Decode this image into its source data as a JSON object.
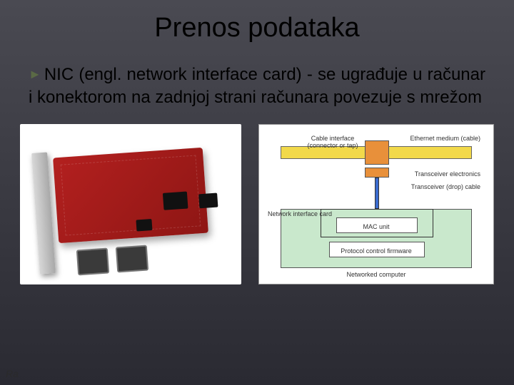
{
  "slide": {
    "title": "Prenos podataka",
    "bullet_prefix": "NIC",
    "body_rest": "  (engl. network interface card) - se ugrađuje u računar i  konektorom na zadnjoj strani računara povezuje s mrežom",
    "footer": "Ra"
  },
  "diagram": {
    "type": "infographic",
    "background_color": "#ffffff",
    "font_size_pt": 7,
    "text_color": "#333333",
    "medium_bar": {
      "color": "#f2d94a",
      "border": "#666666"
    },
    "tap_box": {
      "color": "#e8903a",
      "border": "#555555"
    },
    "trans_box": {
      "color": "#e8903a",
      "border": "#555555"
    },
    "drop_cable": {
      "color": "#3a6bce",
      "border": "#333333"
    },
    "computer_box": {
      "color": "#c9e8cc",
      "border": "#555555"
    },
    "inner_box": {
      "color": "#ffffff",
      "border": "#555555"
    },
    "labels": {
      "cable_interface": "Cable interface\n(connector or tap)",
      "ethernet_medium": "Ethernet medium (cable)",
      "transceiver": "Transceiver electronics",
      "drop_cable": "Transceiver (drop) cable",
      "nic": "Network interface card",
      "mac": "MAC unit",
      "protocol": "Protocol control firmware",
      "networked_computer": "Networked computer"
    }
  },
  "photo": {
    "type": "natural-image",
    "note": "Red PCI network interface card with two RJ-45 ports and metal bracket",
    "board_color": "#a01a18",
    "bracket_color": "#c8c8c8",
    "port_color": "#3a3a3a"
  },
  "style": {
    "slide_bg_gradient": [
      "#4a4a52",
      "#3a3a42",
      "#2a2a32"
    ],
    "title_fontsize": 38,
    "body_fontsize": 24,
    "bullet_arrow_color": "#5a6a45"
  }
}
